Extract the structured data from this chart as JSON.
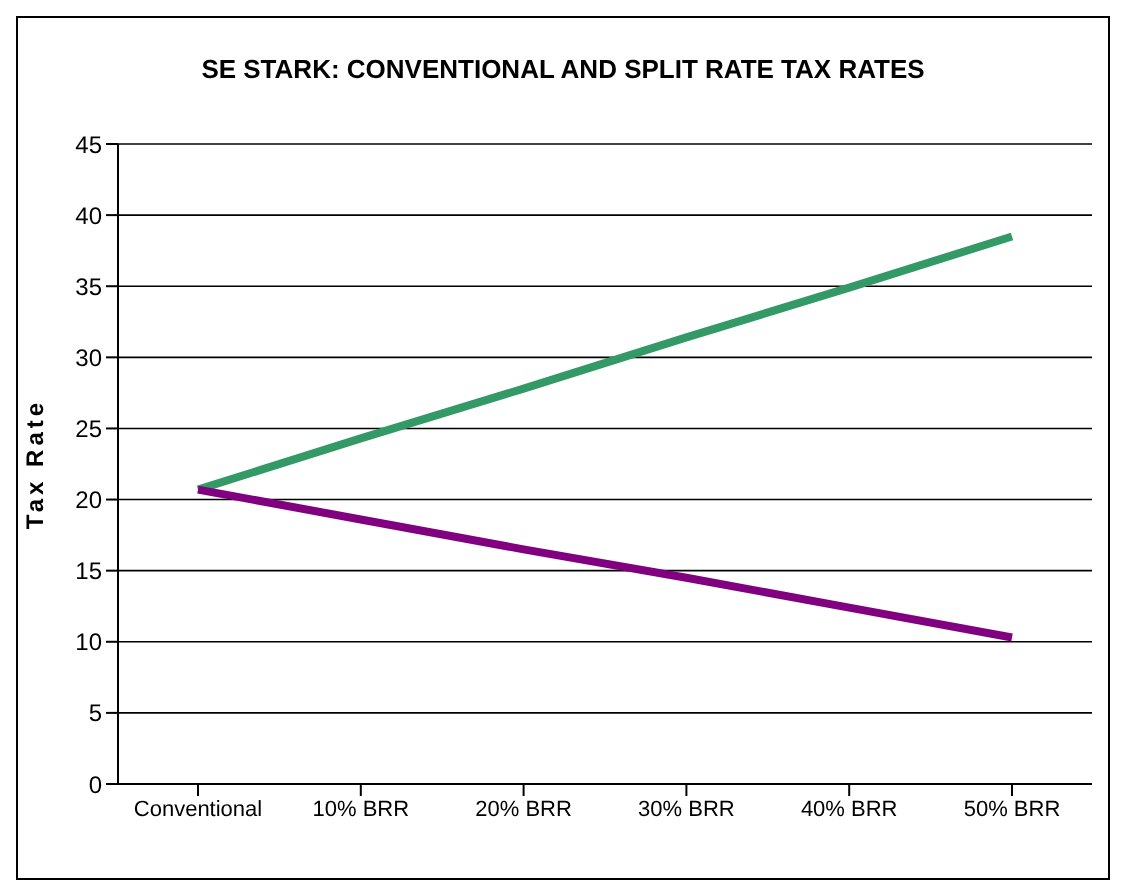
{
  "chart_data": {
    "type": "line",
    "title": "SE STARK: CONVENTIONAL AND SPLIT RATE TAX RATES",
    "ylabel": "Tax Rate",
    "categories": [
      "Conventional",
      "10% BRR",
      "20% BRR",
      "30% BRR",
      "40% BRR",
      "50% BRR"
    ],
    "series": [
      {
        "color": "#339966",
        "values": [
          20.7,
          24.3,
          27.8,
          31.4,
          34.9,
          38.5
        ]
      },
      {
        "color": "#800080",
        "values": [
          20.7,
          18.6,
          16.5,
          14.5,
          12.4,
          10.3
        ]
      }
    ],
    "ylim": [
      0,
      45
    ],
    "yticks": [
      0,
      5,
      10,
      15,
      20,
      25,
      30,
      35,
      40,
      45
    ],
    "grid": "y",
    "marker": "none",
    "line_style": "solid"
  }
}
